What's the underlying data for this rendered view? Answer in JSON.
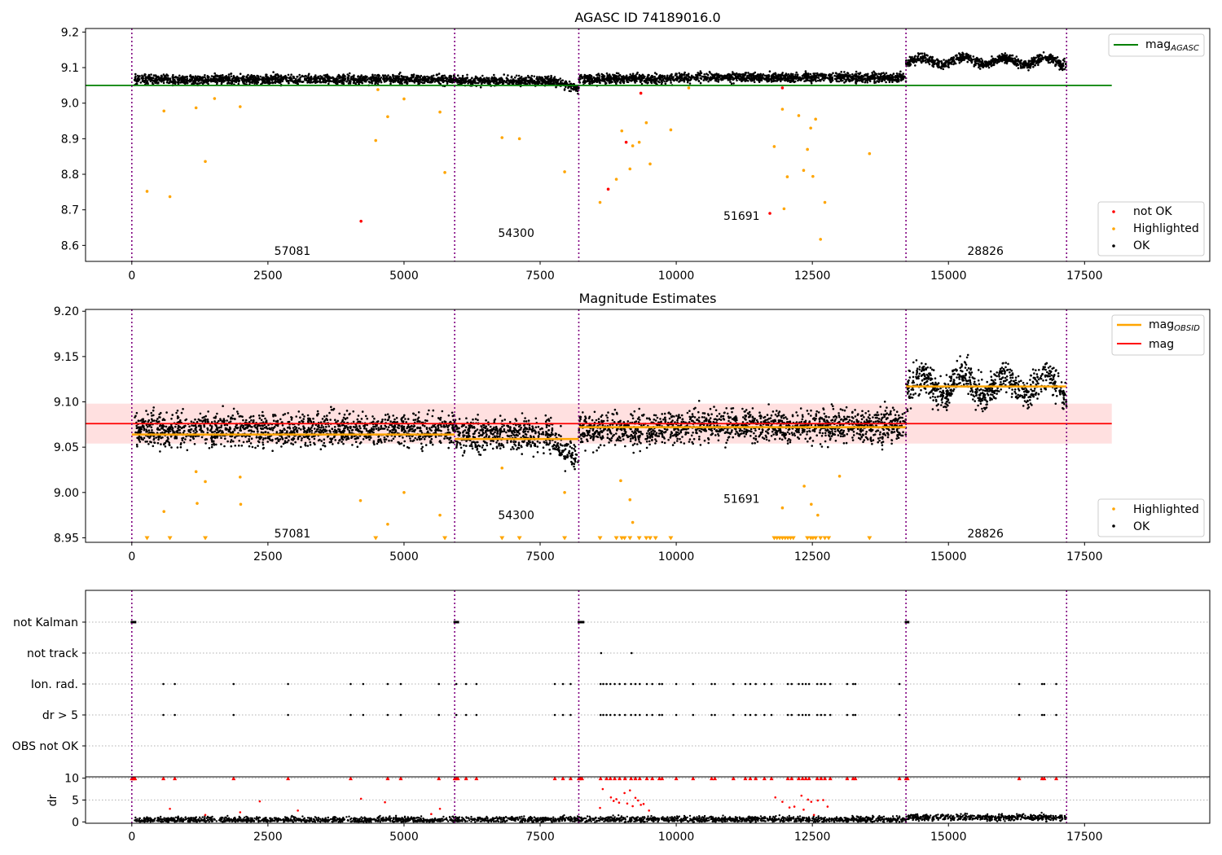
{
  "chart_data": [
    {
      "type": "scatter",
      "title": "AGASC ID 74189016.0",
      "xlim": [
        -850,
        19800
      ],
      "ylim": [
        8.555,
        9.21
      ],
      "xticks": [
        0,
        2500,
        5000,
        7500,
        10000,
        12500,
        15000,
        17500
      ],
      "yticks": [
        8.6,
        8.7,
        8.8,
        8.9,
        9.0,
        9.1,
        9.2
      ],
      "obs_boundaries": [
        0,
        5930,
        8210,
        14220,
        17170
      ],
      "obs_labels": [
        {
          "text": "57081",
          "x": 2950,
          "y": 8.585
        },
        {
          "text": "54300",
          "x": 7060,
          "y": 8.635
        },
        {
          "text": "51691",
          "x": 11200,
          "y": 8.683
        },
        {
          "text": "28826",
          "x": 15680,
          "y": 8.585
        }
      ],
      "band_levels": [
        {
          "x0": 50,
          "x1": 5930,
          "level": 9.067
        },
        {
          "x0": 5930,
          "x1": 8210,
          "level": 9.062
        },
        {
          "x0": 8210,
          "x1": 10000,
          "level": 9.068
        },
        {
          "x0": 10000,
          "x1": 14220,
          "level": 9.072
        },
        {
          "x0": 14220,
          "x1": 17170,
          "level": 9.118
        }
      ],
      "band_spread": 0.013,
      "mag_agasc": {
        "label": "mag_AGASC",
        "value": 9.05,
        "x0": -850,
        "x1": 18000,
        "color": "#008000"
      },
      "highlighted_points": [
        [
          280,
          8.752
        ],
        [
          590,
          8.978
        ],
        [
          700,
          8.737
        ],
        [
          1180,
          8.987
        ],
        [
          1350,
          8.836
        ],
        [
          1520,
          9.013
        ],
        [
          1990,
          8.99
        ],
        [
          4480,
          8.895
        ],
        [
          4520,
          9.038
        ],
        [
          4700,
          8.962
        ],
        [
          5000,
          9.012
        ],
        [
          5660,
          8.975
        ],
        [
          5750,
          8.805
        ],
        [
          6800,
          8.903
        ],
        [
          7120,
          8.9
        ],
        [
          7950,
          8.807
        ],
        [
          8600,
          8.721
        ],
        [
          8900,
          8.786
        ],
        [
          9000,
          8.922
        ],
        [
          9150,
          8.815
        ],
        [
          9200,
          8.88
        ],
        [
          9320,
          8.89
        ],
        [
          9450,
          8.945
        ],
        [
          9520,
          8.829
        ],
        [
          9900,
          8.925
        ],
        [
          10230,
          9.043
        ],
        [
          11800,
          8.878
        ],
        [
          11950,
          8.983
        ],
        [
          12040,
          8.793
        ],
        [
          12250,
          8.965
        ],
        [
          12340,
          8.811
        ],
        [
          12410,
          8.87
        ],
        [
          12470,
          8.93
        ],
        [
          12510,
          8.794
        ],
        [
          12650,
          8.617
        ],
        [
          12730,
          8.721
        ],
        [
          13550,
          8.858
        ],
        [
          11980,
          8.703
        ],
        [
          12560,
          8.955
        ]
      ],
      "not_ok_points": [
        [
          4210,
          8.668
        ],
        [
          8750,
          8.758
        ],
        [
          9080,
          8.89
        ],
        [
          9350,
          9.028
        ],
        [
          11720,
          8.69
        ],
        [
          11950,
          9.043
        ]
      ],
      "legend": [
        "mag_AGASC",
        "not OK",
        "Highlighted",
        "OK"
      ],
      "ok_color": "#000000",
      "highlight_color": "#ffa500",
      "not_ok_color": "#ff0000"
    },
    {
      "type": "scatter",
      "title": "Magnitude Estimates",
      "xlim": [
        -850,
        19800
      ],
      "ylim": [
        8.945,
        9.202
      ],
      "xticks": [
        0,
        2500,
        5000,
        7500,
        10000,
        12500,
        15000,
        17500
      ],
      "yticks": [
        8.95,
        9.0,
        9.05,
        9.1,
        9.15,
        9.2
      ],
      "obs_boundaries": [
        0,
        5930,
        8210,
        14220,
        17170
      ],
      "obs_labels": [
        {
          "text": "57081",
          "x": 2950,
          "y": 8.955
        },
        {
          "text": "54300",
          "x": 7060,
          "y": 8.975
        },
        {
          "text": "51691",
          "x": 11200,
          "y": 8.993
        },
        {
          "text": "28826",
          "x": 15680,
          "y": 8.955
        }
      ],
      "mag": {
        "label": "mag",
        "value": 9.076,
        "low": 9.054,
        "high": 9.098,
        "x0": -850,
        "x1": 18000,
        "color": "#ff0000"
      },
      "mag_obsid": [
        {
          "x0": 0,
          "x1": 5930,
          "value": 9.064
        },
        {
          "x0": 5930,
          "x1": 8210,
          "value": 9.059
        },
        {
          "x0": 8210,
          "x1": 14220,
          "value": 9.072
        },
        {
          "x0": 14220,
          "x1": 17170,
          "value": 9.117
        }
      ],
      "highlighted_points": [
        [
          590,
          8.979
        ],
        [
          1180,
          9.023
        ],
        [
          1350,
          9.012
        ],
        [
          1990,
          9.017
        ],
        [
          1200,
          8.988
        ],
        [
          2000,
          8.987
        ],
        [
          4200,
          8.991
        ],
        [
          4700,
          8.965
        ],
        [
          5000,
          9.0
        ],
        [
          5660,
          8.975
        ],
        [
          6800,
          9.027
        ],
        [
          7950,
          9.0
        ],
        [
          8980,
          9.013
        ],
        [
          9150,
          8.992
        ],
        [
          9200,
          8.967
        ],
        [
          11950,
          8.983
        ],
        [
          12350,
          9.007
        ],
        [
          12480,
          8.987
        ],
        [
          12600,
          8.975
        ],
        [
          13000,
          9.018
        ]
      ],
      "floor_points": [
        280,
        700,
        1350,
        4480,
        5750,
        6800,
        7120,
        7950,
        8600,
        8900,
        9000,
        9050,
        9150,
        9320,
        9450,
        9520,
        9620,
        9900,
        11800,
        11850,
        11900,
        11950,
        12000,
        12050,
        12100,
        12150,
        12410,
        12470,
        12510,
        12560,
        12650,
        12730,
        12800,
        13550
      ],
      "legend": [
        "mag_OBSID",
        "mag",
        "Highlighted",
        "OK"
      ],
      "obsid_color": "#ffa500"
    },
    {
      "type": "scatter",
      "flag_rows": [
        "not Kalman",
        "not track",
        "Ion. rad.",
        "dr > 5",
        "OBS not OK"
      ],
      "xlim": [
        -850,
        19800
      ],
      "xticks": [
        0,
        2500,
        5000,
        7500,
        10000,
        12500,
        15000,
        17500
      ],
      "obs_boundaries": [
        0,
        5930,
        8210,
        14220,
        17170
      ],
      "not_kalman_x": [
        0,
        20,
        40,
        60,
        5930,
        5950,
        5970,
        5990,
        8210,
        8230,
        8250,
        8270,
        8290,
        14220,
        14240,
        14260
      ],
      "not_track_x": [
        8620,
        9180
      ],
      "ion_rad_x": [
        580,
        790,
        1870,
        2870,
        4020,
        4250,
        4700,
        4940,
        5640,
        5960,
        6140,
        6330,
        7770,
        7920,
        8060,
        8610,
        8660,
        8720,
        8790,
        8870,
        8960,
        9060,
        9170,
        9250,
        9330,
        9460,
        9560,
        9690,
        9740,
        10000,
        10310,
        10650,
        10710,
        11050,
        11270,
        11360,
        11460,
        11620,
        11750,
        12050,
        12120,
        12250,
        12320,
        12380,
        12440,
        12590,
        12660,
        12730,
        12830,
        13140,
        13250,
        13290,
        14100,
        16300,
        16720,
        16760,
        16980
      ],
      "dr_gt5_x": [
        580,
        790,
        1870,
        2870,
        4020,
        4250,
        4700,
        4940,
        5640,
        5960,
        6140,
        6330,
        7770,
        7920,
        8060,
        8610,
        8660,
        8720,
        8790,
        8870,
        8960,
        9060,
        9170,
        9250,
        9330,
        9460,
        9560,
        9690,
        9740,
        10000,
        10310,
        10650,
        10710,
        11050,
        11270,
        11360,
        11460,
        11620,
        11750,
        12050,
        12120,
        12250,
        12320,
        12380,
        12440,
        12590,
        12660,
        12730,
        12830,
        13140,
        13250,
        13290,
        14100,
        16300,
        16720,
        16760,
        16980
      ]
    },
    {
      "type": "scatter",
      "ylabel": "dr",
      "xlim": [
        -850,
        19800
      ],
      "ylim": [
        -0.3,
        10.3
      ],
      "xticks": [
        0,
        2500,
        5000,
        7500,
        10000,
        12500,
        15000,
        17500
      ],
      "yticks": [
        0,
        5,
        10
      ],
      "obs_boundaries": [
        0,
        5930,
        8210,
        14220,
        17170
      ],
      "clipped_x": [
        0,
        20,
        40,
        60,
        580,
        790,
        1870,
        2870,
        4020,
        4700,
        4940,
        5640,
        5930,
        5960,
        5990,
        6140,
        6330,
        7770,
        7920,
        8060,
        8210,
        8240,
        8270,
        8610,
        8720,
        8790,
        8870,
        8960,
        9060,
        9170,
        9250,
        9330,
        9460,
        9560,
        9690,
        9740,
        10000,
        10310,
        10650,
        10710,
        11050,
        11270,
        11360,
        11460,
        11620,
        11750,
        12050,
        12120,
        12250,
        12320,
        12380,
        12440,
        12590,
        12660,
        12730,
        12830,
        13140,
        13250,
        13290,
        14100,
        14220,
        14250,
        16300,
        16720,
        16760,
        16980
      ],
      "outlier_points": [
        [
          700,
          3.0
        ],
        [
          1350,
          1.6
        ],
        [
          1990,
          2.2
        ],
        [
          2350,
          4.7
        ],
        [
          3050,
          2.6
        ],
        [
          4210,
          5.3
        ],
        [
          4650,
          4.5
        ],
        [
          5500,
          1.8
        ],
        [
          5660,
          3.0
        ],
        [
          8600,
          3.2
        ],
        [
          8650,
          7.5
        ],
        [
          8800,
          5.6
        ],
        [
          8850,
          4.8
        ],
        [
          8900,
          5.2
        ],
        [
          8950,
          4.4
        ],
        [
          9050,
          6.6
        ],
        [
          9100,
          4.2
        ],
        [
          9150,
          7.2
        ],
        [
          9200,
          3.6
        ],
        [
          9250,
          5.5
        ],
        [
          9300,
          4.9
        ],
        [
          9350,
          3.9
        ],
        [
          9400,
          4.1
        ],
        [
          9500,
          2.6
        ],
        [
          11820,
          5.6
        ],
        [
          11950,
          4.6
        ],
        [
          12080,
          3.3
        ],
        [
          12170,
          3.5
        ],
        [
          12300,
          6.0
        ],
        [
          12340,
          2.8
        ],
        [
          12420,
          5.1
        ],
        [
          12480,
          4.6
        ],
        [
          12530,
          1.6
        ],
        [
          12600,
          4.9
        ],
        [
          12700,
          5.0
        ],
        [
          12780,
          3.5
        ]
      ]
    }
  ]
}
